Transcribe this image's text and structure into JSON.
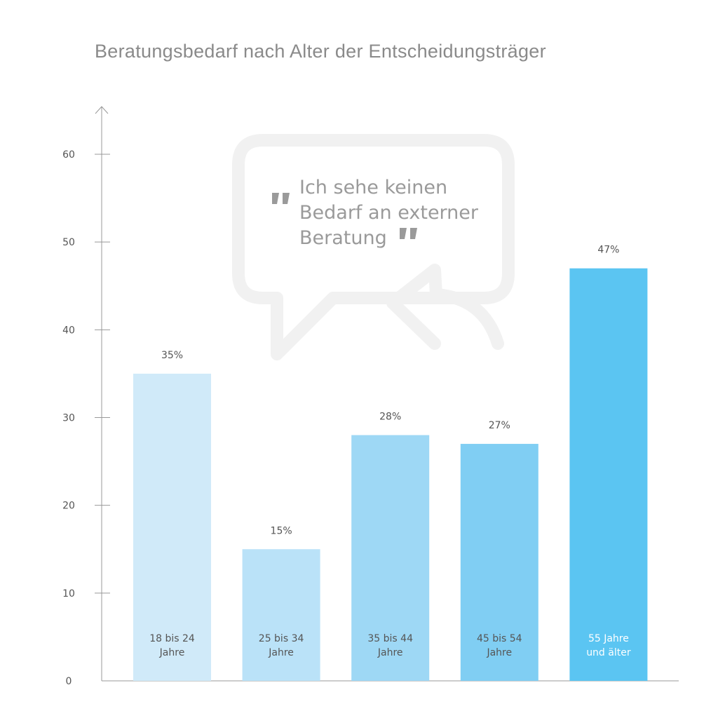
{
  "chart_data": {
    "type": "bar",
    "title": "Beratungsbedarf nach Alter der Entscheidungsträger",
    "xlabel": "",
    "ylabel": "",
    "ylim": [
      0,
      65
    ],
    "yticks": [
      0,
      10,
      20,
      30,
      40,
      50,
      60
    ],
    "grid": false,
    "categories": [
      [
        "18 bis 24",
        "Jahre"
      ],
      [
        "25 bis 34",
        "Jahre"
      ],
      [
        "35 bis 44",
        "Jahre"
      ],
      [
        "45 bis 54",
        "Jahre"
      ],
      [
        "55 Jahre",
        "und älter"
      ]
    ],
    "values": [
      35,
      15,
      28,
      27,
      47
    ],
    "data_labels": [
      "35%",
      "15%",
      "28%",
      "27%",
      "47%"
    ],
    "colors": [
      "#d0eaf9",
      "#bae2f8",
      "#9ed8f5",
      "#80cef3",
      "#5bc5f2"
    ],
    "category_label_colors": [
      "#555555",
      "#555555",
      "#555555",
      "#555555",
      "#ffffff"
    ],
    "annotation": {
      "lines": [
        "Ich sehe keinen",
        "Bedarf an externer",
        "Beratung"
      ],
      "text_color": "#9a9a9a",
      "bubble_color": "#f1f1f1"
    }
  }
}
